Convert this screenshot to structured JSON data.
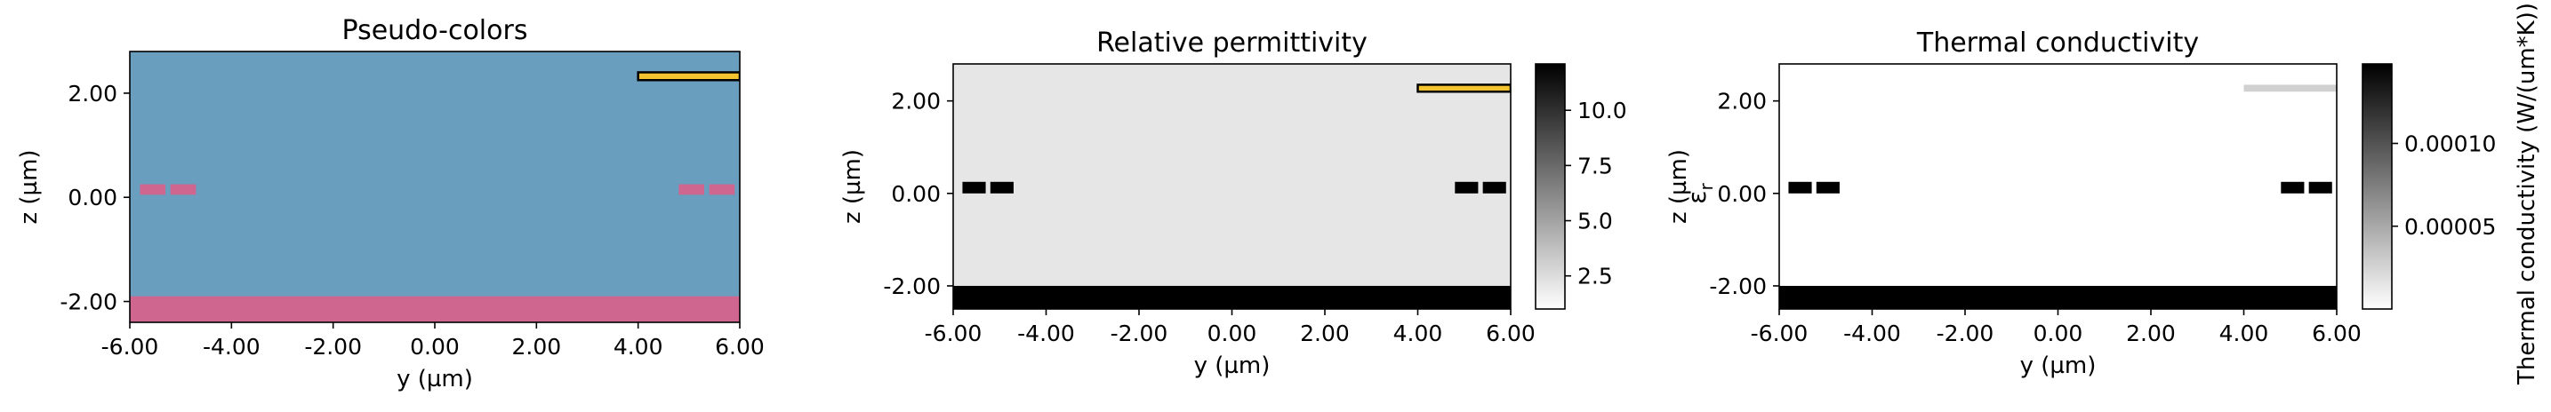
{
  "chart_data": [
    {
      "type": "heatmap",
      "title": "Pseudo-colors",
      "xlabel": "y (µm)",
      "ylabel": "z (µm)",
      "xlim": [
        -6,
        6
      ],
      "ylim": [
        -2.4,
        2.8
      ],
      "x_ticks": [
        -6,
        -4,
        -2,
        0,
        2,
        4,
        6
      ],
      "y_ticks": [
        -2,
        0,
        2
      ],
      "x_tick_labels": [
        "-6.00",
        "-4.00",
        "-2.00",
        "0.00",
        "2.00",
        "4.00",
        "6.00"
      ],
      "y_tick_labels": [
        "-2.00",
        "0.00",
        "2.00"
      ],
      "background_color": "#6a9ebe",
      "regions": [
        {
          "x": [
            -6,
            6
          ],
          "y": [
            -2.4,
            -1.9
          ],
          "color": "#cf6690",
          "outline": false
        },
        {
          "x": [
            -5.8,
            -5.3
          ],
          "y": [
            0.05,
            0.25
          ],
          "color": "#cf6690",
          "outline": false
        },
        {
          "x": [
            -5.2,
            -4.7
          ],
          "y": [
            0.05,
            0.25
          ],
          "color": "#cf6690",
          "outline": false
        },
        {
          "x": [
            4.8,
            5.3
          ],
          "y": [
            0.05,
            0.25
          ],
          "color": "#cf6690",
          "outline": false
        },
        {
          "x": [
            5.4,
            5.9
          ],
          "y": [
            0.05,
            0.25
          ],
          "color": "#cf6690",
          "outline": false
        },
        {
          "x": [
            4.0,
            6.0
          ],
          "y": [
            2.25,
            2.4
          ],
          "color": "#f4c430",
          "outline": true
        }
      ]
    },
    {
      "type": "heatmap",
      "title": "Relative permittivity",
      "xlabel": "y (µm)",
      "ylabel": "z (µm)",
      "xlim": [
        -6,
        6
      ],
      "ylim": [
        -2.5,
        2.8
      ],
      "x_ticks": [
        -6,
        -4,
        -2,
        0,
        2,
        4,
        6
      ],
      "y_ticks": [
        -2,
        0,
        2
      ],
      "x_tick_labels": [
        "-6.00",
        "-4.00",
        "-2.00",
        "0.00",
        "2.00",
        "4.00",
        "6.00"
      ],
      "y_tick_labels": [
        "-2.00",
        "0.00",
        "2.00"
      ],
      "background_color": "#e6e6e6",
      "regions": [
        {
          "x": [
            -6,
            6
          ],
          "y": [
            -2.5,
            -2.0
          ],
          "color": "#000000",
          "outline": false
        },
        {
          "x": [
            -5.8,
            -5.3
          ],
          "y": [
            0.0,
            0.25
          ],
          "color": "#000000",
          "outline": false
        },
        {
          "x": [
            -5.2,
            -4.7
          ],
          "y": [
            0.0,
            0.25
          ],
          "color": "#000000",
          "outline": false
        },
        {
          "x": [
            4.8,
            5.3
          ],
          "y": [
            0.0,
            0.25
          ],
          "color": "#000000",
          "outline": false
        },
        {
          "x": [
            5.4,
            5.9
          ],
          "y": [
            0.0,
            0.25
          ],
          "color": "#000000",
          "outline": false
        },
        {
          "x": [
            4.0,
            6.0
          ],
          "y": [
            2.2,
            2.35
          ],
          "color": "#f4c430",
          "outline": true
        }
      ],
      "colorbar": {
        "min": 1.0,
        "max": 12.1,
        "ticks": [
          2.5,
          5.0,
          7.5,
          10.0
        ],
        "tick_labels": [
          "2.5",
          "5.0",
          "7.5",
          "10.0"
        ],
        "label": "ε_r",
        "label_main": "ε",
        "label_sub": "r",
        "colormap": "gray_r"
      }
    },
    {
      "type": "heatmap",
      "title": "Thermal conductivity",
      "xlabel": "y (µm)",
      "ylabel": "z (µm)",
      "xlim": [
        -6,
        6
      ],
      "ylim": [
        -2.5,
        2.8
      ],
      "x_ticks": [
        -6,
        -4,
        -2,
        0,
        2,
        4,
        6
      ],
      "y_ticks": [
        -2,
        0,
        2
      ],
      "x_tick_labels": [
        "-6.00",
        "-4.00",
        "-2.00",
        "0.00",
        "2.00",
        "4.00",
        "6.00"
      ],
      "y_tick_labels": [
        "-2.00",
        "0.00",
        "2.00"
      ],
      "background_color": "#ffffff",
      "regions": [
        {
          "x": [
            -6,
            6
          ],
          "y": [
            -2.5,
            -2.0
          ],
          "color": "#000000",
          "outline": false
        },
        {
          "x": [
            -5.8,
            -5.3
          ],
          "y": [
            0.0,
            0.25
          ],
          "color": "#000000",
          "outline": false
        },
        {
          "x": [
            -5.2,
            -4.7
          ],
          "y": [
            0.0,
            0.25
          ],
          "color": "#000000",
          "outline": false
        },
        {
          "x": [
            4.8,
            5.3
          ],
          "y": [
            0.0,
            0.25
          ],
          "color": "#000000",
          "outline": false
        },
        {
          "x": [
            5.4,
            5.9
          ],
          "y": [
            0.0,
            0.25
          ],
          "color": "#000000",
          "outline": false
        },
        {
          "x": [
            4.0,
            6.0
          ],
          "y": [
            2.2,
            2.35
          ],
          "color": "#d0d0d0",
          "outline": false
        }
      ],
      "colorbar": {
        "min": 0.0,
        "max": 0.000148,
        "ticks": [
          5e-05,
          0.0001
        ],
        "tick_labels": [
          "0.00005",
          "0.00010"
        ],
        "label": "Thermal conductivity (W/(um*K))",
        "colormap": "gray_r"
      }
    }
  ]
}
